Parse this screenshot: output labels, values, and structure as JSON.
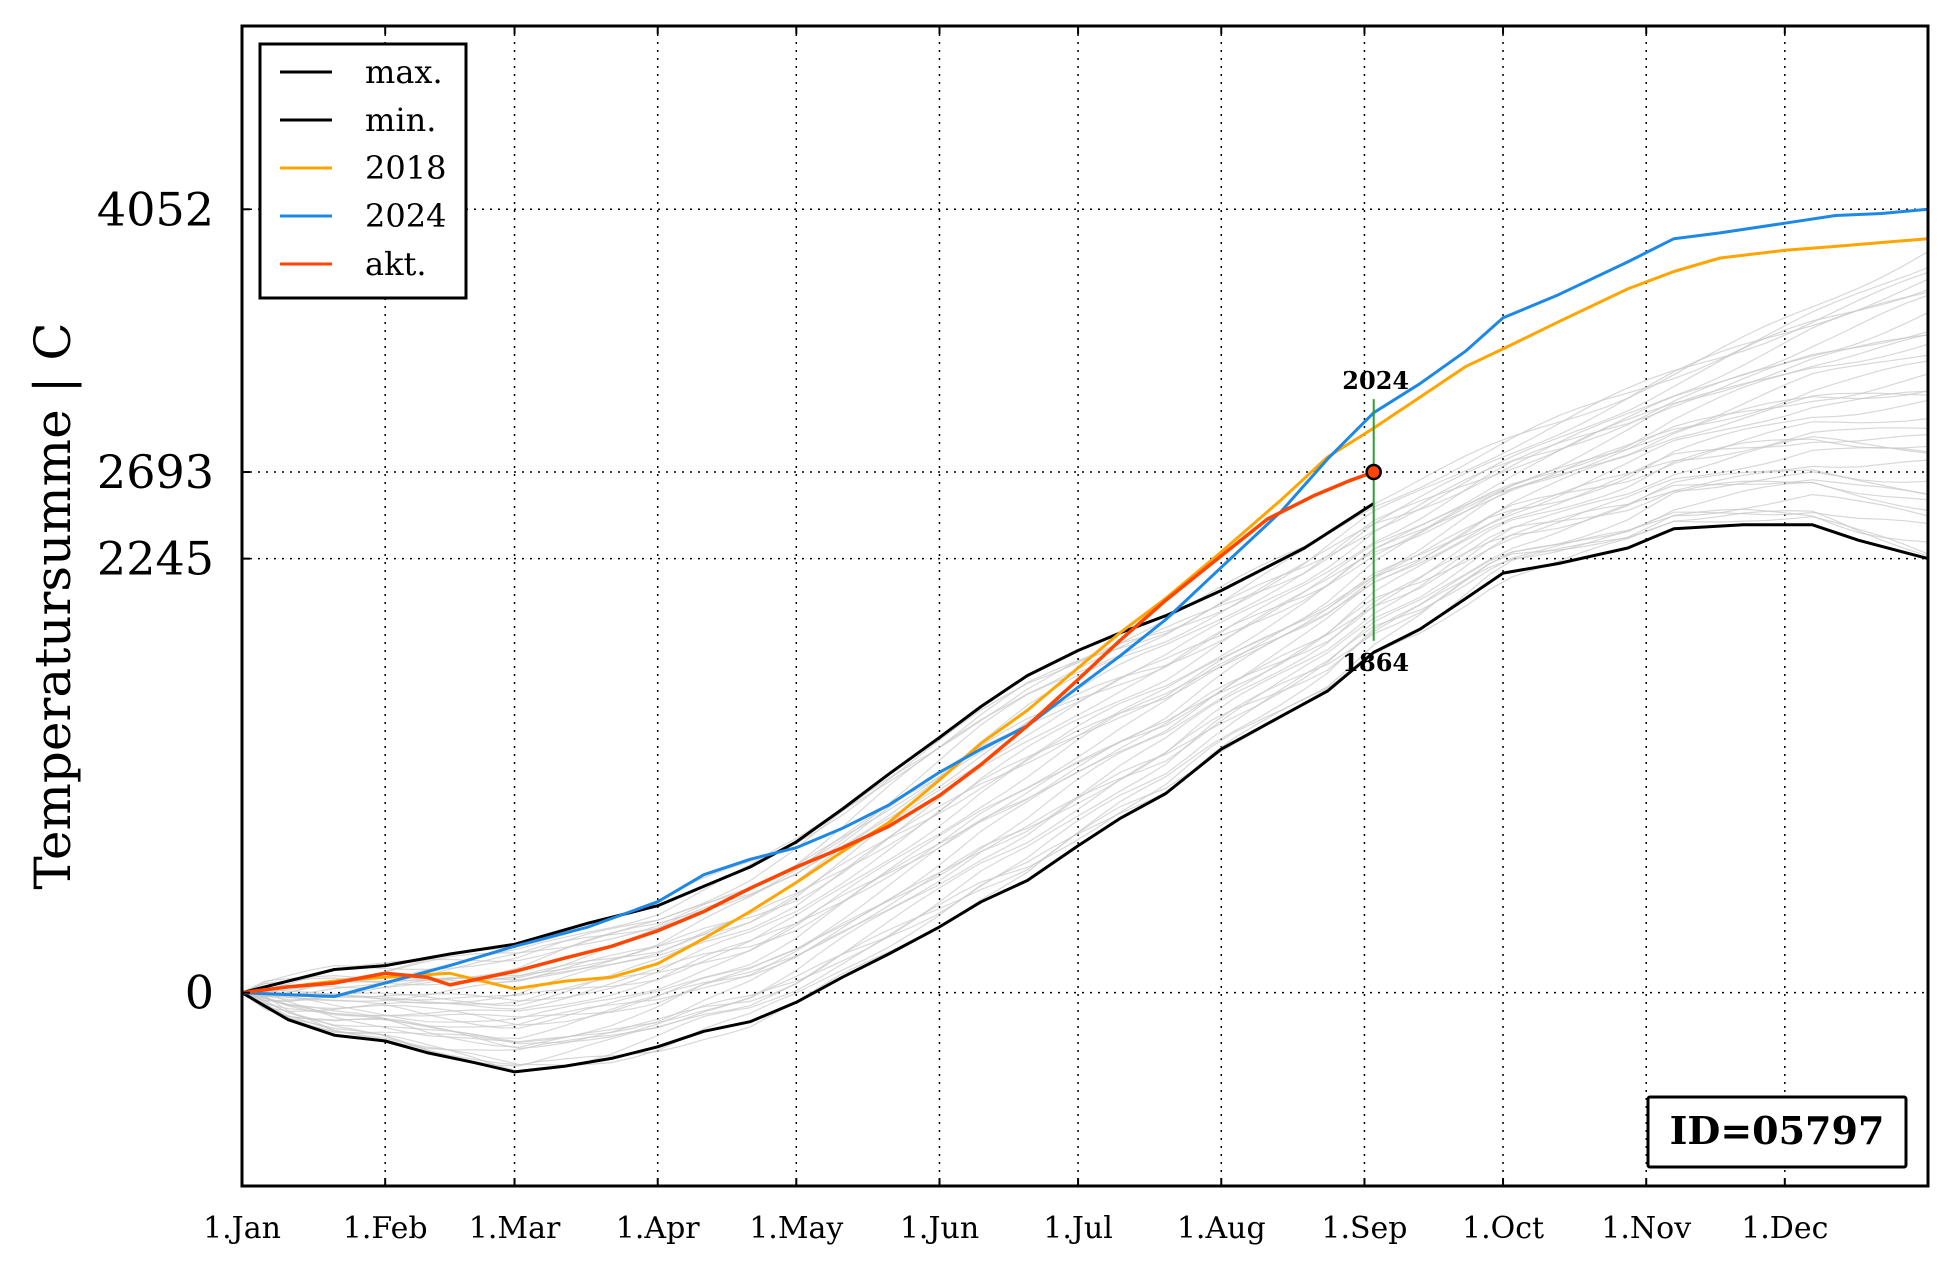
{
  "chart_data": {
    "type": "line",
    "xlabel": "",
    "ylabel": "Temperatursumme | C",
    "x_ticks": [
      "1.Jan",
      "1.Feb",
      "1.Mar",
      "1.Apr",
      "1.May",
      "1.Jun",
      "1.Jul",
      "1.Aug",
      "1.Sep",
      "1.Oct",
      "1.Nov",
      "1.Dec"
    ],
    "x_tick_days": [
      0,
      31,
      59,
      90,
      120,
      151,
      181,
      212,
      243,
      273,
      304,
      334
    ],
    "xlim": [
      0,
      365
    ],
    "y_ticks": [
      0,
      2245,
      2693,
      4052
    ],
    "y_tick_labels": [
      "0",
      "2245",
      "2693",
      "4052"
    ],
    "ylim": [
      -1000,
      5000
    ],
    "grid": "dotted",
    "legend_position": "top-left",
    "legend": [
      {
        "label": "max.",
        "color": "#000000"
      },
      {
        "label": "min.",
        "color": "#000000"
      },
      {
        "label": "2018",
        "color": "#ffa500"
      },
      {
        "label": "2024",
        "color": "#1e88e5"
      },
      {
        "label": "akt.",
        "color": "#ff4500"
      }
    ],
    "annotations": {
      "top_label": "2024",
      "bottom_label": "1864",
      "marker_day": 245,
      "marker_value": 2693,
      "range_line_top": 3070,
      "range_line_bottom": 1820
    },
    "id_label": "ID=05797",
    "background_years_color": "#c8c8c8",
    "series": [
      {
        "name": "max.",
        "color": "#000000",
        "width": 3,
        "points": [
          [
            0,
            0
          ],
          [
            10,
            60
          ],
          [
            20,
            120
          ],
          [
            31,
            140
          ],
          [
            45,
            200
          ],
          [
            59,
            250
          ],
          [
            75,
            360
          ],
          [
            90,
            450
          ],
          [
            100,
            550
          ],
          [
            110,
            650
          ],
          [
            120,
            780
          ],
          [
            130,
            950
          ],
          [
            140,
            1130
          ],
          [
            151,
            1320
          ],
          [
            160,
            1480
          ],
          [
            170,
            1640
          ],
          [
            181,
            1770
          ],
          [
            190,
            1860
          ],
          [
            200,
            1950
          ],
          [
            212,
            2080
          ],
          [
            230,
            2300
          ],
          [
            245,
            2530
          ]
        ]
      },
      {
        "name": "min.",
        "color": "#000000",
        "width": 3,
        "points": [
          [
            0,
            0
          ],
          [
            10,
            -140
          ],
          [
            20,
            -220
          ],
          [
            31,
            -250
          ],
          [
            40,
            -310
          ],
          [
            50,
            -360
          ],
          [
            59,
            -410
          ],
          [
            70,
            -380
          ],
          [
            80,
            -340
          ],
          [
            90,
            -280
          ],
          [
            100,
            -200
          ],
          [
            110,
            -150
          ],
          [
            120,
            -50
          ],
          [
            130,
            80
          ],
          [
            140,
            200
          ],
          [
            151,
            340
          ],
          [
            160,
            470
          ],
          [
            170,
            580
          ],
          [
            181,
            760
          ],
          [
            190,
            900
          ],
          [
            200,
            1030
          ],
          [
            212,
            1260
          ],
          [
            225,
            1430
          ],
          [
            235,
            1560
          ],
          [
            245,
            1760
          ],
          [
            255,
            1880
          ],
          [
            265,
            2040
          ],
          [
            273,
            2170
          ],
          [
            285,
            2220
          ],
          [
            300,
            2300
          ],
          [
            310,
            2400
          ],
          [
            325,
            2420
          ],
          [
            340,
            2420
          ],
          [
            350,
            2340
          ],
          [
            365,
            2245
          ]
        ]
      },
      {
        "name": "2018",
        "color": "#ffa500",
        "width": 3,
        "points": [
          [
            0,
            0
          ],
          [
            10,
            30
          ],
          [
            20,
            60
          ],
          [
            31,
            80
          ],
          [
            45,
            100
          ],
          [
            59,
            20
          ],
          [
            70,
            60
          ],
          [
            80,
            80
          ],
          [
            90,
            150
          ],
          [
            100,
            280
          ],
          [
            110,
            420
          ],
          [
            120,
            570
          ],
          [
            130,
            730
          ],
          [
            140,
            880
          ],
          [
            151,
            1100
          ],
          [
            160,
            1290
          ],
          [
            170,
            1460
          ],
          [
            181,
            1680
          ],
          [
            190,
            1860
          ],
          [
            200,
            2040
          ],
          [
            212,
            2280
          ],
          [
            225,
            2550
          ],
          [
            235,
            2770
          ],
          [
            245,
            2920
          ],
          [
            255,
            3080
          ],
          [
            265,
            3240
          ],
          [
            273,
            3330
          ],
          [
            285,
            3470
          ],
          [
            300,
            3640
          ],
          [
            310,
            3730
          ],
          [
            320,
            3800
          ],
          [
            334,
            3840
          ],
          [
            345,
            3860
          ],
          [
            365,
            3900
          ]
        ]
      },
      {
        "name": "2024",
        "color": "#1e88e5",
        "width": 3,
        "points": [
          [
            0,
            0
          ],
          [
            10,
            -10
          ],
          [
            20,
            -20
          ],
          [
            31,
            50
          ],
          [
            45,
            140
          ],
          [
            59,
            240
          ],
          [
            75,
            340
          ],
          [
            90,
            470
          ],
          [
            100,
            610
          ],
          [
            110,
            690
          ],
          [
            120,
            750
          ],
          [
            130,
            850
          ],
          [
            140,
            970
          ],
          [
            151,
            1140
          ],
          [
            160,
            1260
          ],
          [
            170,
            1380
          ],
          [
            181,
            1580
          ],
          [
            190,
            1740
          ],
          [
            200,
            1930
          ],
          [
            212,
            2200
          ],
          [
            225,
            2490
          ],
          [
            235,
            2760
          ],
          [
            245,
            3000
          ],
          [
            255,
            3150
          ],
          [
            265,
            3320
          ],
          [
            273,
            3490
          ],
          [
            285,
            3610
          ],
          [
            300,
            3780
          ],
          [
            310,
            3900
          ],
          [
            320,
            3930
          ],
          [
            334,
            3980
          ],
          [
            345,
            4020
          ],
          [
            355,
            4030
          ],
          [
            365,
            4052
          ]
        ]
      },
      {
        "name": "akt.",
        "color": "#ff4500",
        "width": 3.5,
        "points": [
          [
            0,
            0
          ],
          [
            10,
            30
          ],
          [
            20,
            50
          ],
          [
            31,
            100
          ],
          [
            40,
            80
          ],
          [
            45,
            40
          ],
          [
            59,
            110
          ],
          [
            70,
            180
          ],
          [
            80,
            240
          ],
          [
            90,
            320
          ],
          [
            100,
            420
          ],
          [
            110,
            540
          ],
          [
            120,
            650
          ],
          [
            130,
            750
          ],
          [
            140,
            860
          ],
          [
            151,
            1020
          ],
          [
            160,
            1180
          ],
          [
            170,
            1380
          ],
          [
            181,
            1620
          ],
          [
            190,
            1820
          ],
          [
            200,
            2030
          ],
          [
            212,
            2260
          ],
          [
            222,
            2450
          ],
          [
            232,
            2570
          ],
          [
            240,
            2650
          ],
          [
            245,
            2693
          ]
        ]
      }
    ]
  }
}
